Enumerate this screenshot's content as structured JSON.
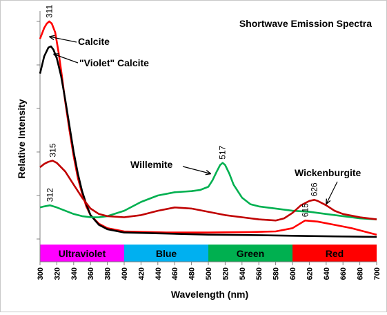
{
  "chart_data": {
    "type": "line",
    "title": "Shortwave Emission Spectra",
    "xlabel": "Wavelength (nm)",
    "ylabel": "Relative Intensity",
    "xlim": [
      300,
      700
    ],
    "ylim": [
      0,
      100
    ],
    "x_ticks": [
      "300",
      "320",
      "340",
      "360",
      "380",
      "400",
      "420",
      "440",
      "460",
      "480",
      "500",
      "520",
      "540",
      "560",
      "580",
      "600",
      "620",
      "640",
      "660",
      "680",
      "700"
    ],
    "grid": false,
    "legend": "none",
    "bands": [
      {
        "label": "Ultraviolet",
        "from": 300,
        "to": 400,
        "color": "#ff00ff",
        "text_color": "#000000"
      },
      {
        "label": "Blue",
        "from": 400,
        "to": 500,
        "color": "#00b0f0",
        "text_color": "#000000"
      },
      {
        "label": "Green",
        "from": 500,
        "to": 600,
        "color": "#00b050",
        "text_color": "#000000"
      },
      {
        "label": "Red",
        "from": 600,
        "to": 700,
        "color": "#ff0000",
        "text_color": "#000000"
      }
    ],
    "series": [
      {
        "name": "Calcite",
        "color": "#ff0000",
        "x": [
          300,
          305,
          308,
          311,
          314,
          318,
          322,
          326,
          330,
          335,
          340,
          345,
          350,
          355,
          360,
          370,
          380,
          400,
          450,
          500,
          550,
          580,
          600,
          615,
          630,
          650,
          670,
          690,
          700
        ],
        "y": [
          92,
          97,
          99,
          100,
          99,
          95,
          86,
          75,
          63,
          50,
          38,
          28,
          21,
          15,
          11,
          7,
          5,
          3.5,
          3,
          3,
          3.2,
          3.5,
          5,
          8.5,
          8,
          6.5,
          5,
          3,
          2
        ]
      },
      {
        "name": "\"Violet\" Calcite",
        "color": "#000000",
        "x": [
          300,
          305,
          310,
          313,
          316,
          320,
          325,
          330,
          335,
          340,
          345,
          350,
          355,
          360,
          370,
          380,
          400,
          450,
          500,
          550,
          600,
          650,
          700
        ],
        "y": [
          76,
          84,
          88,
          88.5,
          87,
          83,
          75,
          64,
          52,
          40,
          30,
          22,
          16,
          11,
          6.5,
          4.5,
          3,
          2.5,
          2,
          1.8,
          1.5,
          1.2,
          1
        ]
      },
      {
        "name": "Willemite",
        "color": "#00b050",
        "x": [
          300,
          305,
          312,
          320,
          330,
          340,
          350,
          360,
          370,
          380,
          400,
          420,
          440,
          460,
          480,
          490,
          500,
          505,
          510,
          514,
          517,
          520,
          525,
          530,
          540,
          550,
          560,
          580,
          600,
          620,
          640,
          660,
          680,
          700
        ],
        "y": [
          14.5,
          15,
          15.5,
          14.5,
          13,
          11.5,
          10.5,
          10,
          10,
          10.5,
          13,
          17,
          20,
          21.5,
          22,
          22.5,
          24,
          27,
          31,
          34,
          35,
          34,
          30,
          25,
          19,
          16,
          15,
          14,
          13,
          12.5,
          11.5,
          10.5,
          9.5,
          9
        ]
      },
      {
        "name": "Wickenburgite (upper)",
        "color": "#c00000",
        "x": [
          300,
          305,
          310,
          315,
          320,
          330,
          340,
          350,
          360,
          370,
          380,
          400,
          420,
          440,
          460,
          480,
          500,
          520,
          540,
          560,
          580,
          590,
          600,
          610,
          620,
          626,
          630,
          640,
          650,
          660,
          680,
          700
        ],
        "y": [
          33,
          34.5,
          35.5,
          36,
          35,
          31,
          25,
          19,
          14,
          11.5,
          10.5,
          10,
          11,
          13,
          14.5,
          14,
          12.5,
          11,
          10,
          9,
          8.5,
          9.5,
          12,
          15.5,
          17.5,
          18,
          17.5,
          15.5,
          13,
          11.5,
          10,
          9
        ]
      }
    ],
    "annotations": [
      {
        "text": "Calcite",
        "arrow_x": 311,
        "arrow_y": 93
      },
      {
        "text": "\"Violet\" Calcite",
        "arrow_x": 316,
        "arrow_y": 85
      },
      {
        "text": "Willemite",
        "arrow_x": 503,
        "arrow_y": 30
      },
      {
        "text": "Wickenburgite",
        "arrow_x": 640,
        "arrow_y": 16
      }
    ],
    "peak_labels": [
      {
        "text": "311",
        "x": 311,
        "y": 100,
        "rotate": true
      },
      {
        "text": "315",
        "x": 315,
        "y": 36,
        "rotate": true
      },
      {
        "text": "312",
        "x": 312,
        "y": 15.5,
        "rotate": true
      },
      {
        "text": "517",
        "x": 517,
        "y": 35,
        "rotate": true
      },
      {
        "text": "626",
        "x": 626,
        "y": 18,
        "rotate": true
      },
      {
        "text": "615",
        "x": 615,
        "y": 8.5,
        "rotate": true
      }
    ]
  }
}
